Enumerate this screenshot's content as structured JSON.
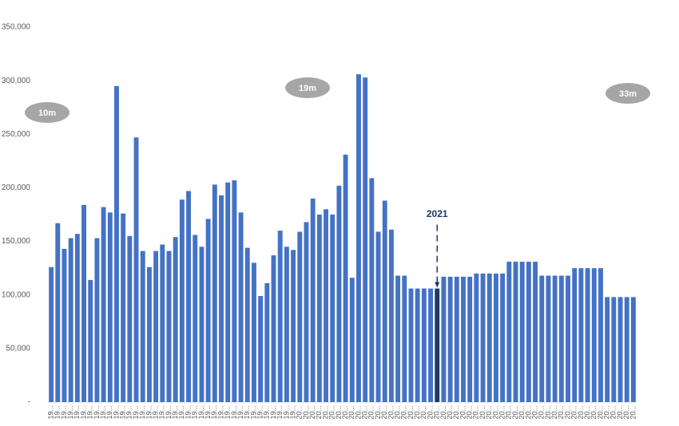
{
  "chart_data": {
    "type": "bar",
    "categories": [
      "19...",
      "19...",
      "19...",
      "19...",
      "19...",
      "19...",
      "19...",
      "19...",
      "19...",
      "19...",
      "19...",
      "19...",
      "19...",
      "19...",
      "19...",
      "19...",
      "19...",
      "19...",
      "19...",
      "19...",
      "19...",
      "19...",
      "19...",
      "19...",
      "19...",
      "19...",
      "19...",
      "19...",
      "19...",
      "19...",
      "19...",
      "19...",
      "19...",
      "19...",
      "19...",
      "19...",
      "19...",
      "19...",
      "20...",
      "20...",
      "20...",
      "20...",
      "20...",
      "20...",
      "20...",
      "20...",
      "20...",
      "20...",
      "20...",
      "20...",
      "20...",
      "20...",
      "20...",
      "20...",
      "20...",
      "20...",
      "20...",
      "20...",
      "20...",
      "20...",
      "20...",
      "20...",
      "20...",
      "20...",
      "20...",
      "20...",
      "20...",
      "20...",
      "20...",
      "20...",
      "20...",
      "20...",
      "20...",
      "20...",
      "20...",
      "20...",
      "20...",
      "20...",
      "20...",
      "20...",
      "20...",
      "20...",
      "20...",
      "20...",
      "20...",
      "20...",
      "20...",
      "20...",
      "20...",
      "20..."
    ],
    "values": [
      126000,
      167000,
      143000,
      153000,
      157000,
      184000,
      114000,
      153000,
      182000,
      177000,
      295000,
      176000,
      155000,
      247000,
      141000,
      126000,
      141000,
      147000,
      141000,
      154000,
      189000,
      197000,
      156000,
      145000,
      171000,
      203000,
      193000,
      205000,
      207000,
      177000,
      144000,
      130000,
      99000,
      111000,
      137000,
      160000,
      145000,
      142000,
      159000,
      168000,
      190000,
      175000,
      180000,
      175000,
      202000,
      231000,
      116000,
      306000,
      303000,
      209000,
      159000,
      188000,
      161000,
      118000,
      118000,
      106000,
      106000,
      106000,
      106000,
      106000,
      117000,
      117000,
      117000,
      117000,
      117000,
      120000,
      120000,
      120000,
      120000,
      120000,
      131000,
      131000,
      131000,
      131000,
      131000,
      118000,
      118000,
      118000,
      118000,
      118000,
      125000,
      125000,
      125000,
      125000,
      125000,
      98000,
      98000,
      98000,
      98000,
      98000
    ],
    "color": "#4472c4",
    "highlight_color": "#1f3864",
    "ylim": [
      0,
      350000
    ],
    "yticks": [
      {
        "value": 0,
        "label": "-"
      },
      {
        "value": 50000,
        "label": "50,000"
      },
      {
        "value": 100000,
        "label": "100,000"
      },
      {
        "value": 150000,
        "label": "150,000"
      },
      {
        "value": 200000,
        "label": "200,000"
      },
      {
        "value": 250000,
        "label": "250,000"
      },
      {
        "value": 300000,
        "label": "300,000"
      },
      {
        "value": 350000,
        "label": "350,000"
      }
    ],
    "annotations": [
      {
        "text": "2021",
        "index": 59
      }
    ],
    "bubbles": [
      "10m",
      "19m",
      "33m"
    ]
  }
}
